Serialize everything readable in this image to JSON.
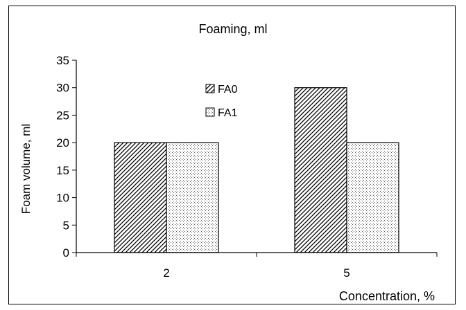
{
  "chart_data": {
    "type": "bar",
    "title": "Foaming, ml",
    "xlabel": "Concentration, %",
    "ylabel": "Foam volume, ml",
    "categories": [
      "2",
      "5"
    ],
    "series": [
      {
        "name": "FA0",
        "values": [
          20,
          30
        ],
        "pattern": "diagonal-hatch"
      },
      {
        "name": "FA1",
        "values": [
          20,
          20
        ],
        "pattern": "dots"
      }
    ],
    "ylim": [
      0,
      35
    ],
    "yticks": [
      0,
      5,
      10,
      15,
      20,
      25,
      30,
      35
    ],
    "grid": false,
    "legend": "top-center",
    "colors": {
      "bar_fill": "#ffffff",
      "stroke": "#000000"
    }
  }
}
